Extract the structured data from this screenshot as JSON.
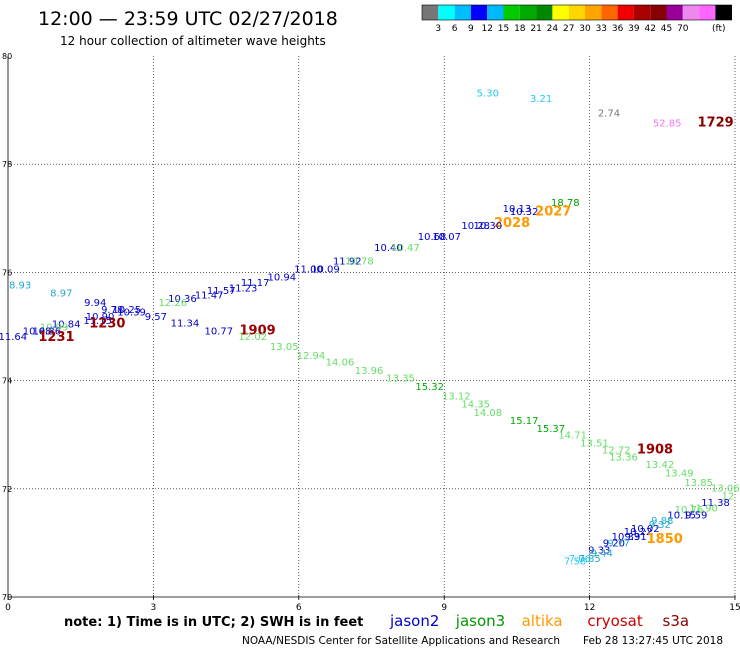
{
  "header": {
    "title": "12:00 — 23:59 UTC 02/27/2018",
    "subtitle": "12 hour collection of altimeter wave heights"
  },
  "colorbar": {
    "colors": [
      "#777777",
      "#00ffff",
      "#00bfff",
      "#0000ff",
      "#00b8ff",
      "#00cc00",
      "#00aa00",
      "#008800",
      "#ffff00",
      "#ffd700",
      "#ffa500",
      "#ff6600",
      "#ee0000",
      "#aa0000",
      "#880000",
      "#990099",
      "#ee88ee",
      "#ff66ff",
      "#000000"
    ],
    "labels": [
      "3",
      "6",
      "9",
      "12",
      "15",
      "18",
      "21",
      "24",
      "27",
      "30",
      "33",
      "36",
      "39",
      "42",
      "45",
      "70"
    ],
    "unit": "(ft)"
  },
  "footer": {
    "note": "note:  1) Time is in UTC;  2) SWH is in feet",
    "credit": "NOAA/NESDIS Center for Satellite Applications and Research",
    "timestamp": "Feb 28 13:27:45 UTC 2018"
  },
  "chart_data": {
    "type": "scatter",
    "xlim": [
      0,
      15
    ],
    "ylim": [
      70,
      80
    ],
    "x_ticks": [
      "0",
      "3",
      "6",
      "9",
      "12",
      "15"
    ],
    "y_ticks": [
      "70",
      "72",
      "74",
      "76",
      "78",
      "80"
    ],
    "grid": true,
    "colors": {
      "jason2": "#0000cc",
      "jason3": "#009900",
      "altika": "#ff9900",
      "cryosat": "#cc0000",
      "s3a": "#990000",
      "light_green": "#66dd66",
      "cyan": "#22bbdd",
      "purple": "#9900aa",
      "pink": "#ee77ee",
      "gray": "#777777"
    },
    "legend": [
      {
        "name": "jason2",
        "color": "#0000cc"
      },
      {
        "name": "jason3",
        "color": "#009900"
      },
      {
        "name": "altika",
        "color": "#ff9900"
      },
      {
        "name": "cryosat",
        "color": "#cc0000"
      },
      {
        "name": "s3a",
        "color": "#880000"
      }
    ],
    "points": [
      {
        "x": 9.9,
        "y": 79.25,
        "t": "5.30",
        "c": "#22ccee"
      },
      {
        "x": 11.0,
        "y": 79.15,
        "t": "3.21",
        "c": "#22ccee"
      },
      {
        "x": 12.4,
        "y": 78.88,
        "t": "2.74",
        "c": "#777777"
      },
      {
        "x": 13.6,
        "y": 78.7,
        "t": "52.85",
        "c": "#ee77ee"
      },
      {
        "x": 14.6,
        "y": 78.7,
        "t": "1729",
        "c": "#880000",
        "big": true
      },
      {
        "x": 11.5,
        "y": 77.23,
        "t": "18.78",
        "c": "#009900"
      },
      {
        "x": 10.5,
        "y": 77.12,
        "t": "10.13",
        "c": "#0000cc"
      },
      {
        "x": 10.65,
        "y": 77.06,
        "t": "10.32",
        "c": "#0000cc"
      },
      {
        "x": 11.25,
        "y": 77.05,
        "t": "2027",
        "c": "#ff9900",
        "big": true
      },
      {
        "x": 10.4,
        "y": 76.84,
        "t": "2028",
        "c": "#ff9900",
        "big": true
      },
      {
        "x": 9.65,
        "y": 76.8,
        "t": "10.28",
        "c": "#0000cc"
      },
      {
        "x": 9.9,
        "y": 76.8,
        "t": "10.30",
        "c": "#0000cc"
      },
      {
        "x": 8.75,
        "y": 76.6,
        "t": "10.68",
        "c": "#0000cc"
      },
      {
        "x": 9.05,
        "y": 76.6,
        "t": "10.07",
        "c": "#0000cc"
      },
      {
        "x": 7.85,
        "y": 76.4,
        "t": "10.40",
        "c": "#0000cc"
      },
      {
        "x": 8.2,
        "y": 76.4,
        "t": "10.47",
        "c": "#66dd66"
      },
      {
        "x": 7.0,
        "y": 76.15,
        "t": "11.92",
        "c": "#0000cc"
      },
      {
        "x": 7.25,
        "y": 76.15,
        "t": "10.78",
        "c": "#66dd66"
      },
      {
        "x": 6.2,
        "y": 76.0,
        "t": "11.00",
        "c": "#0000cc"
      },
      {
        "x": 6.55,
        "y": 76.0,
        "t": "10.09",
        "c": "#0000cc"
      },
      {
        "x": 5.65,
        "y": 75.85,
        "t": "10.94",
        "c": "#0000cc"
      },
      {
        "x": 5.1,
        "y": 75.75,
        "t": "11.17",
        "c": "#0000cc"
      },
      {
        "x": 4.85,
        "y": 75.65,
        "t": "11.23",
        "c": "#0000cc"
      },
      {
        "x": 4.4,
        "y": 75.6,
        "t": "11.57",
        "c": "#0000cc"
      },
      {
        "x": 4.15,
        "y": 75.52,
        "t": "11.47",
        "c": "#0000cc"
      },
      {
        "x": 3.6,
        "y": 75.45,
        "t": "10.36",
        "c": "#0000cc"
      },
      {
        "x": 3.4,
        "y": 75.38,
        "t": "12.26",
        "c": "#66dd66"
      },
      {
        "x": 0.25,
        "y": 75.7,
        "t": "8.93",
        "c": "#22aacc"
      },
      {
        "x": 1.1,
        "y": 75.55,
        "t": "8.97",
        "c": "#22aacc"
      },
      {
        "x": 1.8,
        "y": 75.38,
        "t": "9.94",
        "c": "#0000cc"
      },
      {
        "x": 2.15,
        "y": 75.25,
        "t": "9.78",
        "c": "#0000cc"
      },
      {
        "x": 2.45,
        "y": 75.25,
        "t": "10.25",
        "c": "#0000cc"
      },
      {
        "x": 2.55,
        "y": 75.2,
        "t": "10.39",
        "c": "#0000cc"
      },
      {
        "x": 3.05,
        "y": 75.12,
        "t": "9.57",
        "c": "#0000cc"
      },
      {
        "x": 1.9,
        "y": 75.12,
        "t": "10.90",
        "c": "#0000cc"
      },
      {
        "x": 1.85,
        "y": 75.05,
        "t": "11.15",
        "c": "#0000cc"
      },
      {
        "x": 2.05,
        "y": 74.98,
        "t": "1230",
        "c": "#990000",
        "big": true
      },
      {
        "x": 1.2,
        "y": 74.98,
        "t": "10.84",
        "c": "#0000cc"
      },
      {
        "x": 0.95,
        "y": 74.93,
        "t": "10.99",
        "c": "#66dd66"
      },
      {
        "x": 3.65,
        "y": 75.0,
        "t": "11.34",
        "c": "#0000cc"
      },
      {
        "x": 0.6,
        "y": 74.85,
        "t": "10.68",
        "c": "#0000cc"
      },
      {
        "x": 0.8,
        "y": 74.85,
        "t": "10.36",
        "c": "#0000cc"
      },
      {
        "x": 0.1,
        "y": 74.75,
        "t": "11.64",
        "c": "#0000cc"
      },
      {
        "x": 1.0,
        "y": 74.73,
        "t": "1231",
        "c": "#990000",
        "big": true
      },
      {
        "x": 4.35,
        "y": 74.85,
        "t": "10.77",
        "c": "#0000cc"
      },
      {
        "x": 5.15,
        "y": 74.85,
        "t": "1909",
        "c": "#990000",
        "big": true
      },
      {
        "x": 5.05,
        "y": 74.75,
        "t": "12.02",
        "c": "#66dd66"
      },
      {
        "x": 5.7,
        "y": 74.57,
        "t": "13.05",
        "c": "#66dd66"
      },
      {
        "x": 6.25,
        "y": 74.4,
        "t": "12.94",
        "c": "#66dd66"
      },
      {
        "x": 6.85,
        "y": 74.28,
        "t": "14.06",
        "c": "#66dd66"
      },
      {
        "x": 7.45,
        "y": 74.12,
        "t": "13.96",
        "c": "#66dd66"
      },
      {
        "x": 8.1,
        "y": 73.98,
        "t": "13.35",
        "c": "#66dd66"
      },
      {
        "x": 8.7,
        "y": 73.83,
        "t": "15.32",
        "c": "#00aa00"
      },
      {
        "x": 9.25,
        "y": 73.65,
        "t": "13.12",
        "c": "#66dd66"
      },
      {
        "x": 9.65,
        "y": 73.5,
        "t": "14.35",
        "c": "#66dd66"
      },
      {
        "x": 9.9,
        "y": 73.35,
        "t": "14.08",
        "c": "#66dd66"
      },
      {
        "x": 10.65,
        "y": 73.2,
        "t": "15.17",
        "c": "#00aa00"
      },
      {
        "x": 11.2,
        "y": 73.05,
        "t": "15.37",
        "c": "#00aa00"
      },
      {
        "x": 11.65,
        "y": 72.93,
        "t": "14.71",
        "c": "#66dd66"
      },
      {
        "x": 12.1,
        "y": 72.78,
        "t": "13.51",
        "c": "#66dd66"
      },
      {
        "x": 12.55,
        "y": 72.65,
        "t": "12.72",
        "c": "#66dd66"
      },
      {
        "x": 13.35,
        "y": 72.65,
        "t": "1908",
        "c": "#990000",
        "big": true
      },
      {
        "x": 12.7,
        "y": 72.52,
        "t": "13.36",
        "c": "#66dd66"
      },
      {
        "x": 13.45,
        "y": 72.38,
        "t": "13.42",
        "c": "#66dd66"
      },
      {
        "x": 13.85,
        "y": 72.23,
        "t": "13.49",
        "c": "#66dd66"
      },
      {
        "x": 14.25,
        "y": 72.05,
        "t": "13.85",
        "c": "#66dd66"
      },
      {
        "x": 14.8,
        "y": 71.95,
        "t": "13.06",
        "c": "#66dd66"
      },
      {
        "x": 14.95,
        "y": 71.8,
        "t": "12",
        "c": "#66dd66"
      },
      {
        "x": 14.6,
        "y": 71.68,
        "t": "11.38",
        "c": "#0000cc"
      },
      {
        "x": 14.35,
        "y": 71.58,
        "t": "11.90",
        "c": "#66dd66"
      },
      {
        "x": 14.05,
        "y": 71.55,
        "t": "10.76",
        "c": "#66dd66"
      },
      {
        "x": 13.9,
        "y": 71.45,
        "t": "10.15",
        "c": "#0000cc"
      },
      {
        "x": 14.2,
        "y": 71.45,
        "t": "9.59",
        "c": "#0000cc"
      },
      {
        "x": 13.5,
        "y": 71.35,
        "t": "9.88",
        "c": "#22aacc"
      },
      {
        "x": 13.45,
        "y": 71.28,
        "t": "9.32",
        "c": "#22aacc"
      },
      {
        "x": 13.15,
        "y": 71.2,
        "t": "10.02",
        "c": "#0000cc"
      },
      {
        "x": 13.0,
        "y": 71.15,
        "t": "10.22",
        "c": "#0000cc"
      },
      {
        "x": 13.55,
        "y": 71.0,
        "t": "1850",
        "c": "#ff9900",
        "big": true
      },
      {
        "x": 12.75,
        "y": 71.05,
        "t": "10.33",
        "c": "#0000cc"
      },
      {
        "x": 12.95,
        "y": 71.05,
        "t": "9.91",
        "c": "#0000cc"
      },
      {
        "x": 12.5,
        "y": 70.93,
        "t": "9.20",
        "c": "#0000cc"
      },
      {
        "x": 12.6,
        "y": 70.93,
        "t": "9.77",
        "c": "#22aacc"
      },
      {
        "x": 12.2,
        "y": 70.8,
        "t": "9.33",
        "c": "#0000cc"
      },
      {
        "x": 12.25,
        "y": 70.75,
        "t": "9.44",
        "c": "#22aacc"
      },
      {
        "x": 11.8,
        "y": 70.65,
        "t": "7.06",
        "c": "#22ccee"
      },
      {
        "x": 12.0,
        "y": 70.65,
        "t": "7.85",
        "c": "#22aacc"
      },
      {
        "x": 11.7,
        "y": 70.6,
        "t": "7.58",
        "c": "#22ccee"
      }
    ]
  }
}
